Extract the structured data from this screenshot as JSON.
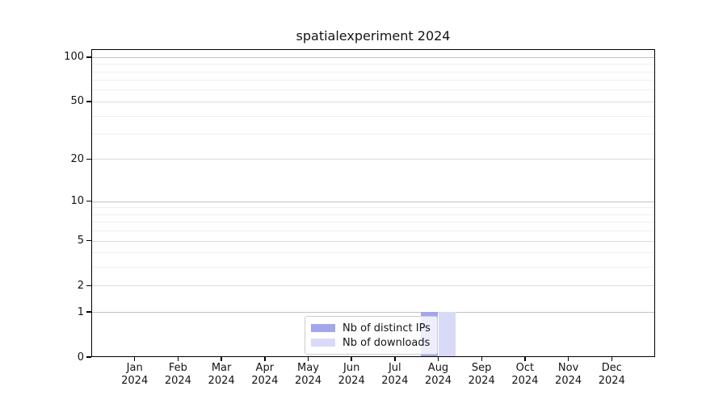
{
  "chart_data": {
    "type": "bar",
    "title": "spatialexperiment 2024",
    "categories": [
      {
        "month": "Jan",
        "year": "2024"
      },
      {
        "month": "Feb",
        "year": "2024"
      },
      {
        "month": "Mar",
        "year": "2024"
      },
      {
        "month": "Apr",
        "year": "2024"
      },
      {
        "month": "May",
        "year": "2024"
      },
      {
        "month": "Jun",
        "year": "2024"
      },
      {
        "month": "Jul",
        "year": "2024"
      },
      {
        "month": "Aug",
        "year": "2024"
      },
      {
        "month": "Sep",
        "year": "2024"
      },
      {
        "month": "Oct",
        "year": "2024"
      },
      {
        "month": "Nov",
        "year": "2024"
      },
      {
        "month": "Dec",
        "year": "2024"
      }
    ],
    "series": [
      {
        "name": "Nb of distinct IPs",
        "color": "#a5a5ea",
        "values": [
          0,
          0,
          0,
          0,
          0,
          0,
          0,
          1,
          0,
          0,
          0,
          0
        ]
      },
      {
        "name": "Nb of downloads",
        "color": "#d9d9f8",
        "values": [
          0,
          0,
          0,
          0,
          0,
          0,
          0,
          1,
          0,
          0,
          0,
          0
        ]
      }
    ],
    "y_axis": {
      "scale": "log1p",
      "major_ticks": [
        0,
        1,
        2,
        5,
        10,
        20,
        50,
        100
      ],
      "minor_gridlines": [
        3,
        4,
        6,
        7,
        8,
        9,
        30,
        40,
        60,
        70,
        80,
        90
      ],
      "emphasis_ticks": [
        1,
        10,
        100
      ]
    },
    "ylim": [
      0,
      113
    ],
    "grid": {
      "major_color": "#dcdcdc",
      "emphasis_color": "#c2c2c2",
      "minor_color": "#efefef"
    },
    "legend": {
      "position": "bottom-center"
    }
  }
}
